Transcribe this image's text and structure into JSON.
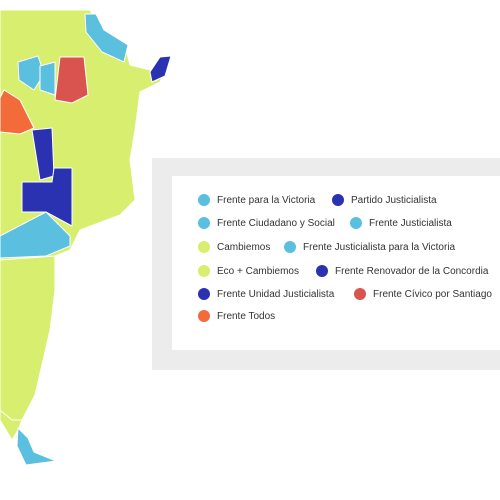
{
  "legend": {
    "items": [
      {
        "label": "Frente para la Victoria",
        "color": "#5bbfe0"
      },
      {
        "label": "Partido Justicialista",
        "color": "#2b32b2"
      },
      {
        "label": "Frente Ciudadano y Social",
        "color": "#5bbfe0"
      },
      {
        "label": "Frente Justicialista",
        "color": "#5bbfe0"
      },
      {
        "label": "Cambiemos",
        "color": "#d8ee6e"
      },
      {
        "label": "Frente Justicialista para la Victoria",
        "color": "#5bbfe0"
      },
      {
        "label": "Eco + Cambiemos",
        "color": "#d8ee6e"
      },
      {
        "label": "Frente Renovador de la Concordia",
        "color": "#2b32b2"
      },
      {
        "label": "Frente Unidad Justicialista",
        "color": "#2b32b2"
      },
      {
        "label": "Frente Cívico por Santiago",
        "color": "#d9534f"
      },
      {
        "label": "Frente Todos",
        "color": "#f26b38"
      }
    ]
  }
}
